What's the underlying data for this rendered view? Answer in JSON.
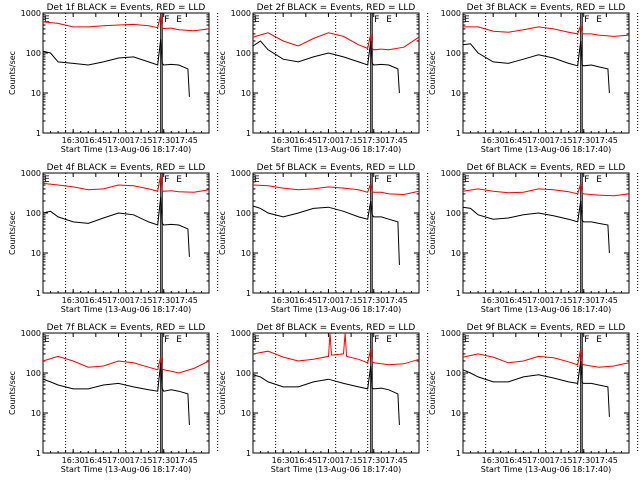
{
  "chart_data": [
    {
      "type": "line",
      "title": "Det 1f BLACK = Events, RED = LLD",
      "ylabel": "Counts/sec",
      "xlabel": "Start Time (13-Aug-06 18:17:40)",
      "xticks": [
        "16:30",
        "16:45",
        "17:00",
        "17:15",
        "17:30",
        "17:45"
      ],
      "yscale": "log",
      "ylim": [
        1,
        1000
      ],
      "yticks": [
        "1",
        "10",
        "100",
        "1000"
      ],
      "markers": [
        "F",
        "E"
      ],
      "series": [
        {
          "color": "#ff0000",
          "x_minutes": [
            0,
            10,
            20,
            30,
            40,
            50,
            60,
            70,
            76,
            78,
            79,
            80,
            85,
            90,
            100,
            110
          ],
          "y": [
            600,
            550,
            450,
            450,
            480,
            500,
            520,
            480,
            430,
            900,
            420,
            410,
            420,
            380,
            360,
            400
          ]
        },
        {
          "color": "#000000",
          "x_minutes": [
            0,
            5,
            10,
            20,
            30,
            40,
            50,
            60,
            70,
            76,
            78,
            79,
            80,
            85,
            90,
            96,
            97
          ],
          "y": [
            110,
            100,
            60,
            55,
            50,
            60,
            75,
            80,
            60,
            50,
            220,
            55,
            50,
            52,
            50,
            40,
            8
          ]
        }
      ]
    },
    {
      "type": "line",
      "title": "Det 2f BLACK = Events, RED = LLD",
      "ylabel": "Counts/sec",
      "xlabel": "Start Time (13-Aug-06 18:17:40)",
      "xticks": [
        "16:30",
        "16:45",
        "17:00",
        "17:15",
        "17:30",
        "17:45"
      ],
      "yscale": "log",
      "ylim": [
        1,
        1000
      ],
      "yticks": [
        "1",
        "10",
        "100",
        "1000"
      ],
      "markers": [
        "F",
        "E"
      ],
      "series": [
        {
          "color": "#ff0000",
          "x_minutes": [
            0,
            10,
            20,
            30,
            40,
            50,
            60,
            70,
            76,
            78,
            79,
            80,
            85,
            90,
            100,
            110
          ],
          "y": [
            250,
            320,
            200,
            150,
            230,
            320,
            260,
            160,
            130,
            300,
            130,
            120,
            125,
            120,
            140,
            250
          ]
        },
        {
          "color": "#000000",
          "x_minutes": [
            0,
            5,
            10,
            20,
            30,
            40,
            50,
            60,
            70,
            76,
            78,
            79,
            80,
            85,
            90,
            96,
            97
          ],
          "y": [
            150,
            200,
            120,
            70,
            60,
            80,
            100,
            80,
            60,
            50,
            200,
            55,
            50,
            52,
            50,
            40,
            10
          ]
        }
      ]
    },
    {
      "type": "line",
      "title": "Det 3f BLACK = Events, RED = LLD",
      "ylabel": "Counts/sec",
      "xlabel": "Start Time (13-Aug-06 18:17:40)",
      "xticks": [
        "16:30",
        "16:45",
        "17:00",
        "17:15",
        "17:30",
        "17:45"
      ],
      "yscale": "log",
      "ylim": [
        1,
        1000
      ],
      "yticks": [
        "1",
        "10",
        "100",
        "1000"
      ],
      "markers": [
        "F",
        "E"
      ],
      "series": [
        {
          "color": "#ff0000",
          "x_minutes": [
            0,
            10,
            20,
            30,
            40,
            50,
            60,
            70,
            76,
            78,
            79,
            80,
            85,
            90,
            100,
            110
          ],
          "y": [
            450,
            450,
            350,
            330,
            380,
            450,
            400,
            330,
            300,
            500,
            310,
            300,
            300,
            280,
            260,
            280
          ]
        },
        {
          "color": "#000000",
          "x_minutes": [
            0,
            5,
            10,
            20,
            30,
            40,
            50,
            60,
            70,
            76,
            78,
            79,
            80,
            85,
            90,
            96,
            97
          ],
          "y": [
            160,
            170,
            100,
            60,
            55,
            70,
            90,
            75,
            55,
            48,
            200,
            50,
            48,
            50,
            45,
            40,
            10
          ]
        }
      ]
    },
    {
      "type": "line",
      "title": "Det 4f BLACK = Events, RED = LLD",
      "ylabel": "Counts/sec",
      "xlabel": "Start Time (13-Aug-06 18:17:40)",
      "xticks": [
        "16:30",
        "16:45",
        "17:00",
        "17:15",
        "17:30",
        "17:45"
      ],
      "yscale": "log",
      "ylim": [
        1,
        1000
      ],
      "yticks": [
        "1",
        "10",
        "100",
        "1000"
      ],
      "markers": [
        "F",
        "E"
      ],
      "series": [
        {
          "color": "#ff0000",
          "x_minutes": [
            0,
            10,
            20,
            30,
            40,
            50,
            60,
            70,
            76,
            78,
            79,
            80,
            85,
            90,
            100,
            110
          ],
          "y": [
            550,
            500,
            450,
            380,
            400,
            500,
            480,
            400,
            350,
            900,
            360,
            350,
            360,
            340,
            330,
            380
          ]
        },
        {
          "color": "#000000",
          "x_minutes": [
            0,
            5,
            10,
            20,
            30,
            40,
            50,
            60,
            70,
            76,
            78,
            79,
            80,
            85,
            90,
            96,
            97
          ],
          "y": [
            100,
            110,
            80,
            60,
            55,
            75,
            100,
            90,
            60,
            50,
            250,
            55,
            50,
            52,
            50,
            40,
            8
          ]
        }
      ]
    },
    {
      "type": "line",
      "title": "Det 5f BLACK = Events, RED = LLD",
      "ylabel": "Counts/sec",
      "xlabel": "Start Time (13-Aug-06 18:17:40)",
      "xticks": [
        "16:30",
        "16:45",
        "17:00",
        "17:15",
        "17:30",
        "17:45"
      ],
      "yscale": "log",
      "ylim": [
        1,
        1000
      ],
      "yticks": [
        "1",
        "10",
        "100",
        "1000"
      ],
      "markers": [
        "F",
        "E"
      ],
      "series": [
        {
          "color": "#ff0000",
          "x_minutes": [
            0,
            10,
            20,
            30,
            40,
            50,
            60,
            70,
            76,
            78,
            79,
            80,
            85,
            90,
            100,
            110
          ],
          "y": [
            500,
            480,
            420,
            380,
            400,
            450,
            420,
            380,
            330,
            550,
            340,
            330,
            330,
            300,
            290,
            350
          ]
        },
        {
          "color": "#000000",
          "x_minutes": [
            0,
            5,
            10,
            20,
            30,
            40,
            50,
            60,
            70,
            76,
            78,
            79,
            80,
            85,
            90,
            96,
            97
          ],
          "y": [
            150,
            130,
            100,
            80,
            100,
            130,
            140,
            110,
            80,
            70,
            200,
            90,
            80,
            80,
            70,
            60,
            5
          ]
        }
      ]
    },
    {
      "type": "line",
      "title": "Det 6f BLACK = Events, RED = LLD",
      "ylabel": "Counts/sec",
      "xlabel": "Start Time (13-Aug-06 18:17:40)",
      "xticks": [
        "16:30",
        "16:45",
        "17:00",
        "17:15",
        "17:30",
        "17:45"
      ],
      "yscale": "log",
      "ylim": [
        1,
        1000
      ],
      "yticks": [
        "1",
        "10",
        "100",
        "1000"
      ],
      "markers": [
        "F",
        "E"
      ],
      "series": [
        {
          "color": "#ff0000",
          "x_minutes": [
            0,
            10,
            20,
            30,
            40,
            50,
            60,
            70,
            76,
            78,
            79,
            80,
            85,
            90,
            100,
            110
          ],
          "y": [
            350,
            400,
            350,
            320,
            330,
            400,
            380,
            340,
            300,
            550,
            310,
            300,
            290,
            280,
            270,
            300
          ]
        },
        {
          "color": "#000000",
          "x_minutes": [
            0,
            5,
            10,
            20,
            30,
            40,
            50,
            60,
            70,
            76,
            78,
            79,
            80,
            85,
            90,
            96,
            97
          ],
          "y": [
            140,
            130,
            90,
            70,
            75,
            90,
            100,
            85,
            70,
            60,
            200,
            65,
            60,
            60,
            55,
            50,
            10
          ]
        }
      ]
    },
    {
      "type": "line",
      "title": "Det 7f BLACK = Events, RED = LLD",
      "ylabel": "Counts/sec",
      "xlabel": "Start Time (13-Aug-06 18:17:40)",
      "xticks": [
        "16:30",
        "16:45",
        "17:00",
        "17:15",
        "17:30",
        "17:45"
      ],
      "yscale": "log",
      "ylim": [
        1,
        1000
      ],
      "yticks": [
        "1",
        "10",
        "100",
        "1000"
      ],
      "markers": [
        "F",
        "E"
      ],
      "series": [
        {
          "color": "#ff0000",
          "x_minutes": [
            0,
            10,
            20,
            30,
            40,
            50,
            60,
            70,
            76,
            78,
            79,
            80,
            85,
            90,
            100,
            110
          ],
          "y": [
            200,
            260,
            200,
            140,
            150,
            200,
            180,
            140,
            120,
            250,
            125,
            120,
            110,
            100,
            130,
            200
          ]
        },
        {
          "color": "#000000",
          "x_minutes": [
            0,
            5,
            10,
            20,
            30,
            40,
            50,
            60,
            70,
            76,
            78,
            79,
            80,
            85,
            90,
            96,
            97
          ],
          "y": [
            70,
            60,
            50,
            40,
            40,
            50,
            55,
            45,
            38,
            35,
            180,
            40,
            35,
            38,
            35,
            30,
            5
          ]
        }
      ]
    },
    {
      "type": "line",
      "title": "Det 8f BLACK = Events, RED = LLD",
      "ylabel": "Counts/sec",
      "xlabel": "Start Time (13-Aug-06 18:17:40)",
      "xticks": [
        "16:30",
        "16:45",
        "17:00",
        "17:15",
        "17:30",
        "17:45"
      ],
      "yscale": "log",
      "ylim": [
        1,
        1000
      ],
      "yticks": [
        "1",
        "10",
        "100",
        "1000"
      ],
      "markers": [
        "F",
        "E"
      ],
      "series": [
        {
          "color": "#ff0000",
          "x_minutes": [
            0,
            10,
            20,
            30,
            40,
            50,
            51,
            52,
            60,
            61,
            62,
            70,
            76,
            78,
            79,
            80,
            85,
            90,
            100,
            110
          ],
          "y": [
            300,
            350,
            250,
            200,
            220,
            260,
            1000,
            280,
            300,
            1000,
            260,
            220,
            180,
            400,
            190,
            180,
            170,
            160,
            170,
            220
          ]
        },
        {
          "color": "#000000",
          "x_minutes": [
            0,
            5,
            10,
            20,
            30,
            40,
            50,
            60,
            70,
            76,
            78,
            79,
            80,
            85,
            90,
            96,
            97
          ],
          "y": [
            90,
            80,
            60,
            45,
            45,
            60,
            70,
            55,
            45,
            40,
            150,
            42,
            40,
            42,
            38,
            30,
            5
          ]
        }
      ]
    },
    {
      "type": "line",
      "title": "Det 9f BLACK = Events, RED = LLD",
      "ylabel": "Counts/sec",
      "xlabel": "Start Time (13-Aug-06 18:17:40)",
      "xticks": [
        "16:30",
        "16:45",
        "17:00",
        "17:15",
        "17:30",
        "17:45"
      ],
      "yscale": "log",
      "ylim": [
        1,
        1000
      ],
      "yticks": [
        "1",
        "10",
        "100",
        "1000"
      ],
      "markers": [
        "F",
        "E"
      ],
      "series": [
        {
          "color": "#ff0000",
          "x_minutes": [
            0,
            10,
            20,
            30,
            40,
            50,
            60,
            70,
            76,
            78,
            79,
            80,
            85,
            90,
            100,
            110
          ],
          "y": [
            250,
            300,
            250,
            180,
            200,
            260,
            240,
            190,
            160,
            400,
            170,
            160,
            150,
            140,
            150,
            180
          ]
        },
        {
          "color": "#000000",
          "x_minutes": [
            0,
            5,
            10,
            20,
            30,
            40,
            50,
            60,
            70,
            76,
            78,
            79,
            80,
            85,
            90,
            96,
            97
          ],
          "y": [
            120,
            100,
            80,
            60,
            60,
            80,
            90,
            75,
            60,
            55,
            200,
            58,
            55,
            55,
            50,
            45,
            8
          ]
        }
      ]
    }
  ]
}
